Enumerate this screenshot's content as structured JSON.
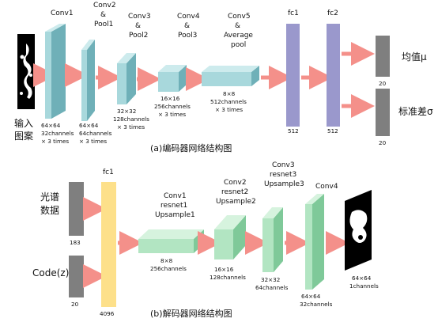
{
  "encoder": {
    "input_label_line1": "输入",
    "input_label_line2": "图案",
    "conv1": {
      "title": "Conv1",
      "size": "64×64",
      "channels": "32channels",
      "times": "× 3 times"
    },
    "conv2": {
      "title_l1": "Conv2",
      "title_l2": "&",
      "title_l3": "Pool1",
      "size": "64×64",
      "channels": "64channels",
      "times": "× 3 times"
    },
    "conv3": {
      "title_l1": "Conv3",
      "title_l2": "&",
      "title_l3": "Pool2",
      "size": "32×32",
      "channels": "128channels",
      "times": "× 3 times"
    },
    "conv4": {
      "title_l1": "Conv4",
      "title_l2": "&",
      "title_l3": "Pool3",
      "size": "16×16",
      "channels": "256channels",
      "times": "× 3 times"
    },
    "conv5": {
      "title_l1": "Conv5",
      "title_l2": "&",
      "title_l3": "Average",
      "title_l4": "pool",
      "size": "8×8",
      "channels": "512channels",
      "times": "× 3 times"
    },
    "fc1": {
      "title": "fc1",
      "size": "512"
    },
    "fc2": {
      "title": "fc2",
      "size": "512"
    },
    "mu": {
      "label": "均值μ",
      "size": "20"
    },
    "sigma": {
      "label": "标准差σ",
      "size": "20"
    },
    "caption": "(a)编码器网络结构图"
  },
  "decoder": {
    "spectrum_line1": "光谱",
    "spectrum_line2": "数据",
    "spectrum_size": "183",
    "code_label": "Code(z)",
    "code_size": "20",
    "fc1": {
      "title": "fc1",
      "size": "4096"
    },
    "conv1": {
      "title_l1": "Conv1",
      "title_l2": "resnet1",
      "title_l3": "Upsample1",
      "size": "8×8",
      "channels": "256channels"
    },
    "conv2": {
      "title_l1": "Conv2",
      "title_l2": "resnet2",
      "title_l3": "Upsample2",
      "size": "16×16",
      "channels": "128channels"
    },
    "conv3": {
      "title_l1": "Conv3",
      "title_l2": "resnet3",
      "title_l3": "Upsample3",
      "size": "32×32",
      "channels": "64channels"
    },
    "conv4": {
      "title": "Conv4",
      "size": "64×64",
      "channels": "32channels"
    },
    "output": {
      "size": "64×64",
      "channels": "1channels"
    },
    "caption": "(b)解码器网络结构图"
  },
  "colors": {
    "conv_front": "#a8d8dc",
    "conv_side": "#6fb0b8",
    "conv_top": "#cdebed",
    "fc_encoder": "#9a98cc",
    "fc_decoder": "#fde08a",
    "small_box": "#7f7f7f",
    "arrow": "#f4908a",
    "dec_front": "#b2e5c2",
    "dec_side": "#7fc999",
    "dec_top": "#d6f3de"
  }
}
